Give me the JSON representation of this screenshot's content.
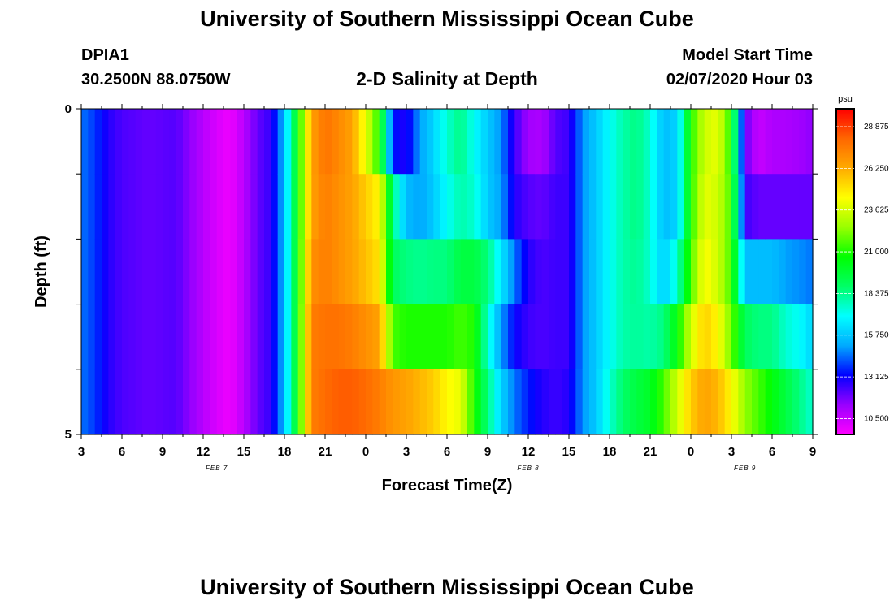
{
  "header": {
    "main_title": "University of Southern Mississippi Ocean Cube",
    "station_id": "DPIA1",
    "station_coords": "30.2500N 88.0750W",
    "chart_subtitle": "2-D Salinity at Depth",
    "model_label": "Model Start Time",
    "model_start": "02/07/2020 Hour 03",
    "footer_title": "University of Southern Mississippi Ocean Cube"
  },
  "chart_data": {
    "type": "heatmap",
    "title": "2-D Salinity at Depth",
    "xlabel": "Forecast Time(Z)",
    "ylabel": "Depth (ft)",
    "x_tick_labels": [
      "3",
      "6",
      "9",
      "12",
      "15",
      "18",
      "21",
      "0",
      "3",
      "6",
      "9",
      "12",
      "15",
      "18",
      "21",
      "0",
      "3",
      "6",
      "9"
    ],
    "x_hours_range": [
      3,
      57
    ],
    "date_labels": [
      {
        "label": "FEB 7",
        "hour": 13
      },
      {
        "label": "FEB 8",
        "hour": 36
      },
      {
        "label": "FEB 9",
        "hour": 52
      }
    ],
    "y_tick_labels": [
      "0",
      "5"
    ],
    "ylim": [
      0,
      5
    ],
    "depth_bands": 5,
    "colorbar": {
      "unit": "psu",
      "range": [
        9.5,
        30.0
      ],
      "tick_labels": [
        "28.875",
        "26.250",
        "23.625",
        "21.000",
        "18.375",
        "15.750",
        "13.125",
        "10.500"
      ],
      "tick_values": [
        28.875,
        26.25,
        23.625,
        21.0,
        18.375,
        15.75,
        13.125,
        10.5
      ],
      "colors": [
        "#ff00ff",
        "#9900ff",
        "#0000ff",
        "#00aaff",
        "#00ffff",
        "#00ff66",
        "#00ff00",
        "#99ff00",
        "#ffff00",
        "#ffaa00",
        "#ff6600",
        "#ff0000"
      ]
    },
    "profile_columns": [
      {
        "hour": 3,
        "values": [
          14.5,
          14.5,
          14.5,
          14.5,
          14.5
        ]
      },
      {
        "hour": 4,
        "values": [
          13.8,
          13.8,
          13.8,
          13.8,
          13.8
        ]
      },
      {
        "hour": 5,
        "values": [
          12.8,
          12.8,
          12.8,
          12.8,
          12.8
        ]
      },
      {
        "hour": 6,
        "values": [
          12.3,
          12.3,
          12.3,
          12.3,
          12.3
        ]
      },
      {
        "hour": 8,
        "values": [
          12.0,
          12.0,
          12.0,
          12.0,
          12.0
        ]
      },
      {
        "hour": 10,
        "values": [
          12.2,
          12.2,
          12.2,
          12.2,
          12.2
        ]
      },
      {
        "hour": 11,
        "values": [
          11.5,
          11.5,
          11.5,
          11.5,
          11.5
        ]
      },
      {
        "hour": 12,
        "values": [
          10.8,
          10.8,
          10.8,
          10.8,
          10.8
        ]
      },
      {
        "hour": 13,
        "values": [
          10.2,
          10.2,
          10.2,
          10.2,
          10.2
        ]
      },
      {
        "hour": 14,
        "values": [
          9.8,
          9.8,
          9.8,
          9.8,
          9.8
        ]
      },
      {
        "hour": 15,
        "values": [
          10.8,
          10.8,
          10.8,
          10.8,
          10.8
        ]
      },
      {
        "hour": 16,
        "values": [
          12.0,
          12.0,
          12.0,
          12.0,
          12.0
        ]
      },
      {
        "hour": 17,
        "values": [
          12.6,
          12.6,
          12.6,
          12.6,
          12.6
        ]
      },
      {
        "hour": 18,
        "values": [
          15.5,
          15.5,
          15.5,
          15.5,
          15.5
        ]
      },
      {
        "hour": 19,
        "values": [
          20.5,
          20.5,
          20.5,
          20.5,
          20.5
        ]
      },
      {
        "hour": 20,
        "values": [
          26.5,
          26.5,
          27.0,
          27.5,
          27.5
        ]
      },
      {
        "hour": 21,
        "values": [
          27.8,
          27.5,
          27.5,
          27.8,
          28.0
        ]
      },
      {
        "hour": 22,
        "values": [
          27.2,
          27.0,
          27.0,
          27.8,
          28.3
        ]
      },
      {
        "hour": 23,
        "values": [
          26.5,
          26.5,
          26.5,
          27.5,
          28.3
        ]
      },
      {
        "hour": 24,
        "values": [
          24.0,
          25.5,
          25.8,
          27.0,
          28.0
        ]
      },
      {
        "hour": 25,
        "values": [
          21.0,
          24.5,
          25.0,
          26.5,
          27.5
        ]
      },
      {
        "hour": 26,
        "values": [
          13.5,
          18.5,
          19.0,
          21.5,
          26.8
        ]
      },
      {
        "hour": 27,
        "values": [
          12.8,
          15.5,
          18.5,
          21.0,
          26.5
        ]
      },
      {
        "hour": 28,
        "values": [
          15.0,
          15.0,
          18.3,
          21.0,
          26.0
        ]
      },
      {
        "hour": 29,
        "values": [
          16.0,
          15.8,
          18.5,
          21.0,
          25.5
        ]
      },
      {
        "hour": 30,
        "values": [
          17.5,
          17.0,
          18.5,
          21.0,
          24.5
        ]
      },
      {
        "hour": 31,
        "values": [
          18.5,
          18.0,
          19.5,
          21.5,
          24.0
        ]
      },
      {
        "hour": 32,
        "values": [
          17.0,
          17.5,
          19.5,
          21.0,
          21.0
        ]
      },
      {
        "hour": 33,
        "values": [
          15.8,
          15.8,
          18.5,
          17.5,
          18.5
        ]
      },
      {
        "hour": 34,
        "values": [
          14.8,
          15.0,
          16.5,
          15.0,
          16.0
        ]
      },
      {
        "hour": 35,
        "values": [
          12.5,
          12.8,
          14.5,
          13.2,
          14.5
        ]
      },
      {
        "hour": 36,
        "values": [
          11.2,
          12.2,
          12.8,
          12.5,
          13.5
        ]
      },
      {
        "hour": 37,
        "values": [
          11.0,
          12.0,
          12.3,
          12.3,
          12.8
        ]
      },
      {
        "hour": 38,
        "values": [
          12.2,
          12.5,
          12.5,
          12.5,
          12.5
        ]
      },
      {
        "hour": 39,
        "values": [
          12.5,
          12.5,
          12.5,
          12.5,
          12.8
        ]
      },
      {
        "hour": 40,
        "values": [
          14.8,
          14.8,
          14.8,
          14.8,
          14.8
        ]
      },
      {
        "hour": 41,
        "values": [
          15.8,
          15.8,
          15.8,
          15.8,
          15.8
        ]
      },
      {
        "hour": 42,
        "values": [
          17.0,
          17.0,
          17.0,
          17.0,
          17.5
        ]
      },
      {
        "hour": 43,
        "values": [
          18.0,
          18.0,
          18.0,
          18.0,
          18.8
        ]
      },
      {
        "hour": 44,
        "values": [
          18.5,
          18.5,
          18.3,
          18.2,
          19.5
        ]
      },
      {
        "hour": 45,
        "values": [
          17.5,
          17.5,
          17.5,
          18.0,
          20.0
        ]
      },
      {
        "hour": 46,
        "values": [
          15.5,
          15.5,
          15.8,
          18.5,
          21.5
        ]
      },
      {
        "hour": 47,
        "values": [
          16.0,
          16.0,
          17.5,
          20.5,
          23.5
        ]
      },
      {
        "hour": 48,
        "values": [
          21.0,
          21.0,
          21.5,
          23.5,
          25.5
        ]
      },
      {
        "hour": 49,
        "values": [
          23.5,
          24.0,
          24.5,
          25.5,
          26.5
        ]
      },
      {
        "hour": 50,
        "values": [
          24.0,
          23.5,
          23.5,
          24.5,
          26.0
        ]
      },
      {
        "hour": 51,
        "values": [
          21.0,
          21.5,
          21.5,
          22.0,
          24.5
        ]
      },
      {
        "hour": 52,
        "values": [
          12.0,
          12.5,
          15.5,
          19.0,
          22.5
        ]
      },
      {
        "hour": 53,
        "values": [
          10.5,
          12.0,
          15.5,
          18.5,
          21.5
        ]
      },
      {
        "hour": 54,
        "values": [
          11.0,
          12.0,
          15.5,
          18.5,
          20.5
        ]
      },
      {
        "hour": 55,
        "values": [
          11.0,
          12.0,
          15.0,
          17.5,
          19.5
        ]
      },
      {
        "hour": 56,
        "values": [
          11.2,
          12.0,
          14.8,
          17.0,
          18.5
        ]
      },
      {
        "hour": 57,
        "values": [
          11.5,
          12.0,
          14.5,
          16.0,
          17.5
        ]
      }
    ]
  }
}
